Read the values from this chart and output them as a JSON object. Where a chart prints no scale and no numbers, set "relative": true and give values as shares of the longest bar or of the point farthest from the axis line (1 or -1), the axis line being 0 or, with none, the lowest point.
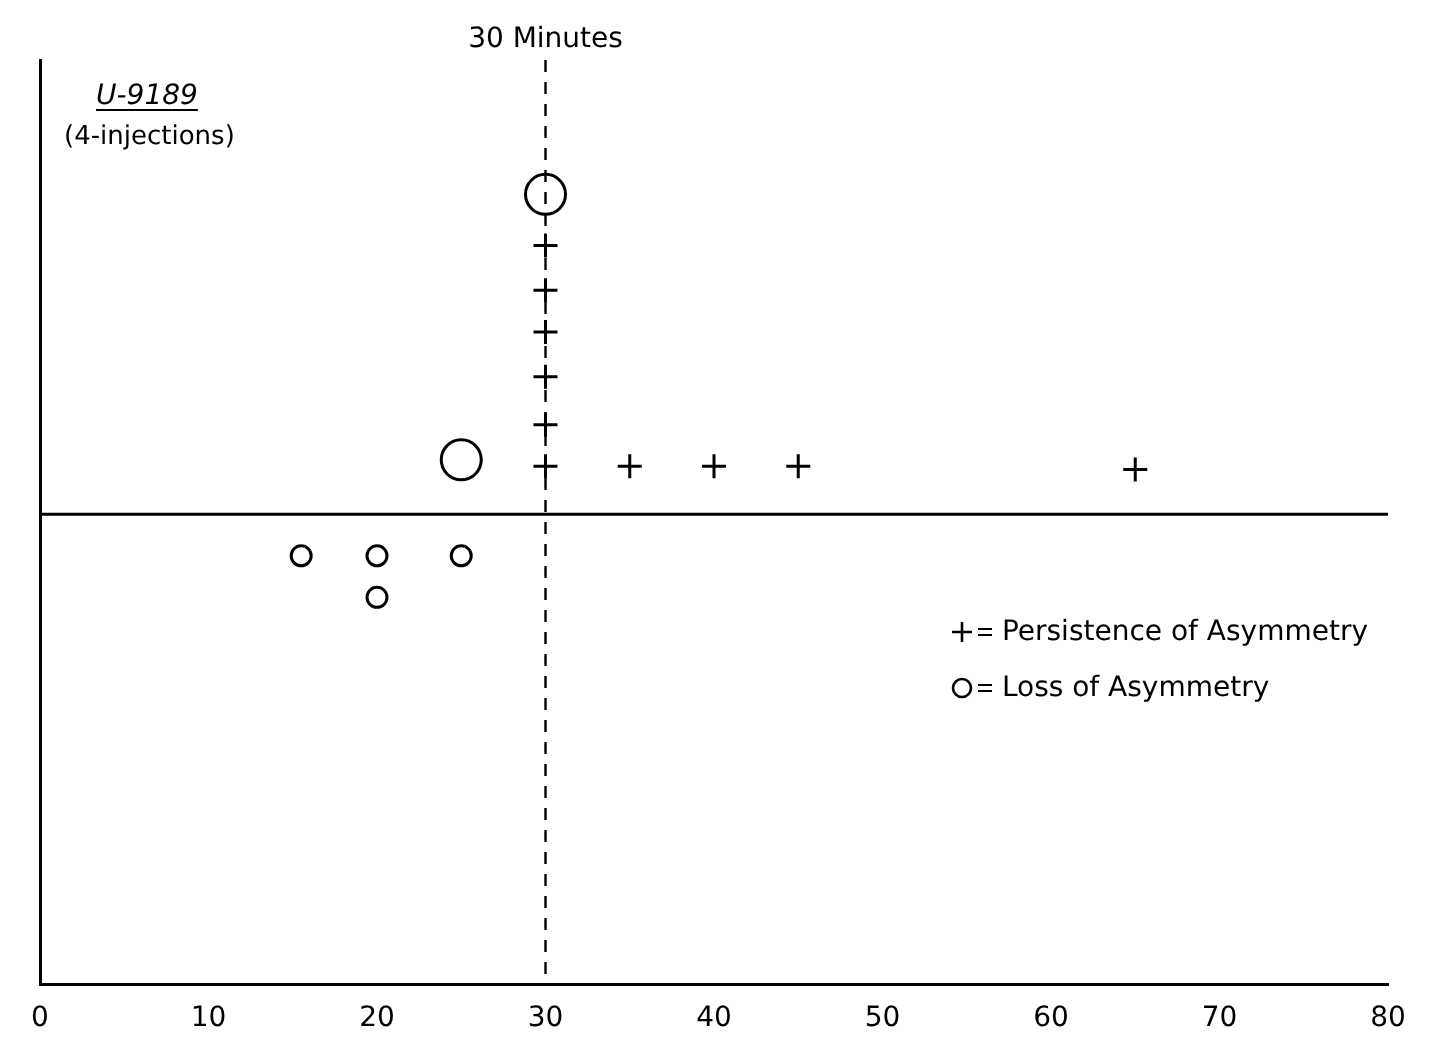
{
  "chart_data": {
    "type": "scatter",
    "relative": true,
    "tick_labels": "x",
    "grid": false,
    "legend": "right",
    "annotations": [
      "U-9189",
      "(4-injections)"
    ],
    "xlim": [
      0,
      80
    ],
    "xticks": [
      0,
      10,
      20,
      30,
      40,
      50,
      60,
      70,
      80
    ],
    "ref_lines": [
      {
        "axis": "x",
        "value": 30,
        "label": "30 Minutes",
        "line_style": "dashed"
      }
    ],
    "series": [
      {
        "name": "Persistence of Asymmetry",
        "color": "#000000",
        "marker": "cross",
        "x": [
          30,
          30,
          30,
          30,
          30,
          30,
          35,
          40,
          45,
          65
        ],
        "values": [
          0.15,
          0.28,
          0.43,
          0.57,
          0.7,
          0.84,
          0.15,
          0.15,
          0.15,
          0.14
        ]
      },
      {
        "name": "Loss of Asymmetry",
        "color": "#000000",
        "marker": "circle",
        "x": [
          15.5,
          20,
          20,
          25
        ],
        "values": [
          -0.13,
          -0.13,
          -0.26,
          -0.13
        ]
      },
      {
        "color": "#000000",
        "marker": "circle",
        "x": [
          30,
          25
        ],
        "values": [
          1,
          0.17
        ]
      }
    ]
  }
}
